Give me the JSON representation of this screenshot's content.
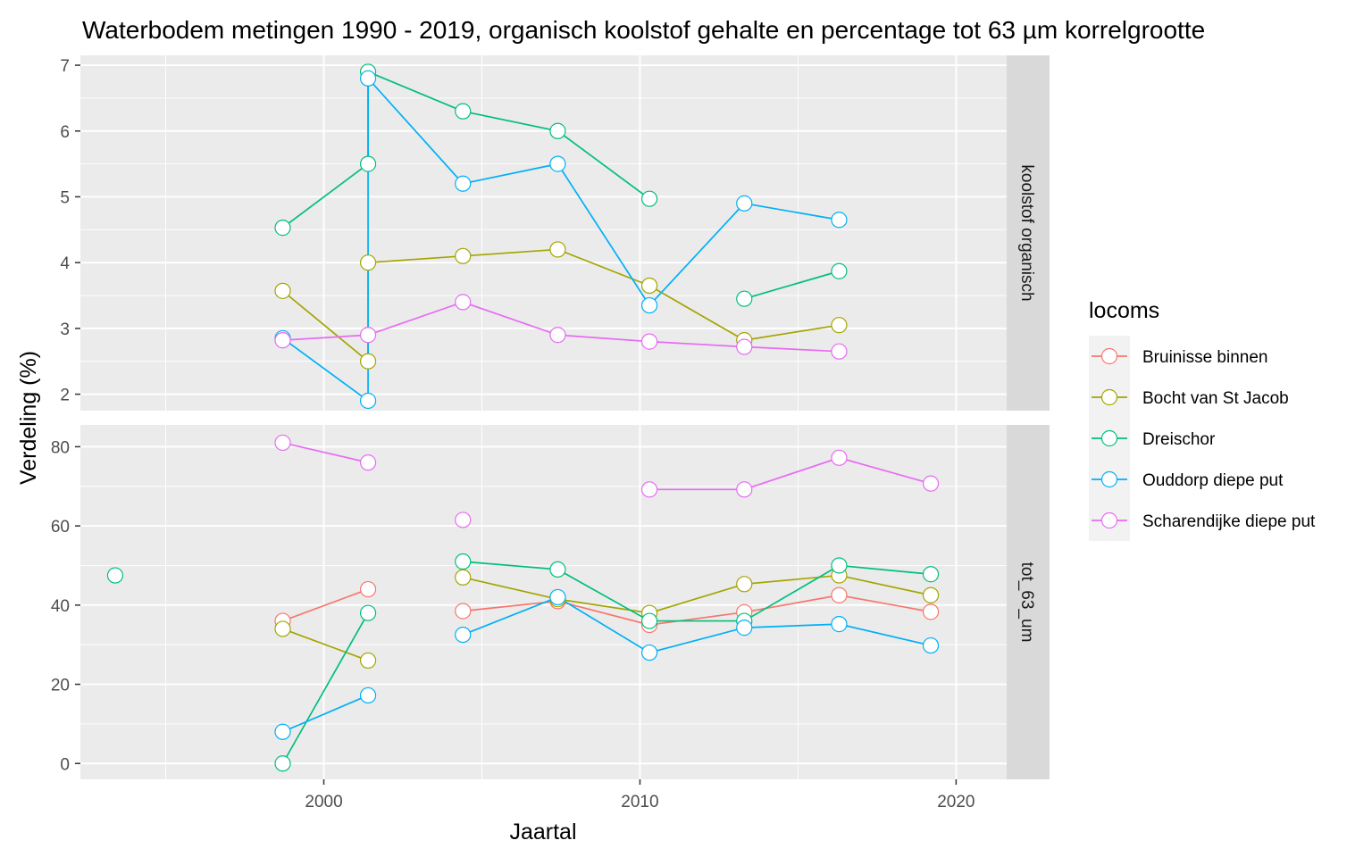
{
  "chart_data": {
    "type": "line",
    "title": "Waterbodem metingen 1990 - 2019, organisch koolstof gehalte en percentage tot 63 µm korrelgrootte",
    "xlabel": "Jaartal",
    "ylabel": "Verdeling (%)",
    "x_ticks": [
      2000,
      2010,
      2020
    ],
    "xlim": [
      1992.3,
      2021.6
    ],
    "grid": true,
    "legend_title": "locoms",
    "legend_position": "right",
    "series_styles": [
      {
        "name": "Bruinisse binnen",
        "color": "#F8766D"
      },
      {
        "name": "Bocht van St Jacob",
        "color": "#A3A500"
      },
      {
        "name": "Dreischor",
        "color": "#00BF7D"
      },
      {
        "name": "Ouddorp diepe put",
        "color": "#00B0F6"
      },
      {
        "name": "Scharendijke diepe put",
        "color": "#E76BF3"
      }
    ],
    "panels": [
      {
        "strip": "koolstof organisch",
        "ylim": [
          1.75,
          7.15
        ],
        "y_ticks": [
          2,
          3,
          4,
          5,
          6,
          7
        ],
        "series": [
          {
            "name": "Bruinisse binnen",
            "segments": []
          },
          {
            "name": "Bocht van St Jacob",
            "segments": [
              [
                [
                  1998.7,
                  3.57
                ],
                [
                  2001.4,
                  2.5
                ],
                [
                  2001.4,
                  4.0
                ],
                [
                  2004.4,
                  4.1
                ],
                [
                  2007.4,
                  4.2
                ],
                [
                  2010.3,
                  3.65
                ],
                [
                  2013.3,
                  2.82
                ],
                [
                  2016.3,
                  3.05
                ]
              ]
            ]
          },
          {
            "name": "Dreischor",
            "segments": [
              [
                [
                  1998.7,
                  4.53
                ],
                [
                  2001.4,
                  5.5
                ],
                [
                  2001.4,
                  6.9
                ],
                [
                  2004.4,
                  6.3
                ],
                [
                  2007.4,
                  6.0
                ],
                [
                  2010.3,
                  4.97
                ]
              ],
              [
                [
                  2013.3,
                  3.45
                ],
                [
                  2016.3,
                  3.87
                ]
              ]
            ]
          },
          {
            "name": "Ouddorp diepe put",
            "segments": [
              [
                [
                  1998.7,
                  2.85
                ],
                [
                  2001.4,
                  1.9
                ],
                [
                  2001.4,
                  6.8
                ],
                [
                  2004.4,
                  5.2
                ],
                [
                  2007.4,
                  5.5
                ],
                [
                  2010.3,
                  3.35
                ],
                [
                  2013.3,
                  4.9
                ],
                [
                  2016.3,
                  4.65
                ]
              ]
            ]
          },
          {
            "name": "Scharendijke diepe put",
            "segments": [
              [
                [
                  1998.7,
                  2.82
                ],
                [
                  2001.4,
                  2.9
                ],
                [
                  2004.4,
                  3.4
                ],
                [
                  2007.4,
                  2.9
                ],
                [
                  2010.3,
                  2.8
                ],
                [
                  2013.3,
                  2.72
                ],
                [
                  2016.3,
                  2.65
                ]
              ]
            ]
          }
        ]
      },
      {
        "strip": "tot_63_um",
        "ylim": [
          -4,
          85.5
        ],
        "y_ticks": [
          0,
          20,
          40,
          60,
          80
        ],
        "series": [
          {
            "name": "Bruinisse binnen",
            "segments": [
              [
                [
                  1998.7,
                  36
                ],
                [
                  2001.4,
                  44
                ]
              ],
              [
                [
                  2004.4,
                  38.5
                ],
                [
                  2007.4,
                  41
                ],
                [
                  2010.3,
                  35
                ],
                [
                  2013.3,
                  38.2
                ],
                [
                  2016.3,
                  42.5
                ],
                [
                  2019.2,
                  38.3
                ]
              ]
            ]
          },
          {
            "name": "Bocht van St Jacob",
            "segments": [
              [
                [
                  1998.7,
                  34
                ],
                [
                  2001.4,
                  26
                ]
              ],
              [
                [
                  2004.4,
                  47
                ],
                [
                  2007.4,
                  41.5
                ],
                [
                  2010.3,
                  38
                ],
                [
                  2013.3,
                  45.3
                ],
                [
                  2016.3,
                  47.5
                ],
                [
                  2019.2,
                  42.5
                ]
              ]
            ]
          },
          {
            "name": "Dreischor",
            "segments": [
              [
                [
                  1993.4,
                  47.5
                ]
              ],
              [
                [
                  1998.7,
                  0
                ],
                [
                  2001.4,
                  38
                ]
              ],
              [
                [
                  2004.4,
                  51
                ],
                [
                  2007.4,
                  49
                ],
                [
                  2010.3,
                  36
                ],
                [
                  2013.3,
                  36
                ],
                [
                  2016.3,
                  50
                ],
                [
                  2019.2,
                  47.8
                ]
              ]
            ]
          },
          {
            "name": "Ouddorp diepe put",
            "segments": [
              [
                [
                  1998.7,
                  8
                ],
                [
                  2001.4,
                  17.2
                ]
              ],
              [
                [
                  2004.4,
                  32.5
                ],
                [
                  2007.4,
                  42
                ],
                [
                  2010.3,
                  28
                ],
                [
                  2013.3,
                  34.3
                ],
                [
                  2016.3,
                  35.2
                ],
                [
                  2019.2,
                  29.8
                ]
              ]
            ]
          },
          {
            "name": "Scharendijke diepe put",
            "segments": [
              [
                [
                  1998.7,
                  81
                ],
                [
                  2001.4,
                  76
                ]
              ],
              [
                [
                  2004.4,
                  61.5
                ]
              ],
              [
                [
                  2010.3,
                  69.2
                ],
                [
                  2013.3,
                  69.2
                ],
                [
                  2016.3,
                  77.2
                ],
                [
                  2019.2,
                  70.7
                ]
              ]
            ]
          }
        ]
      }
    ]
  }
}
